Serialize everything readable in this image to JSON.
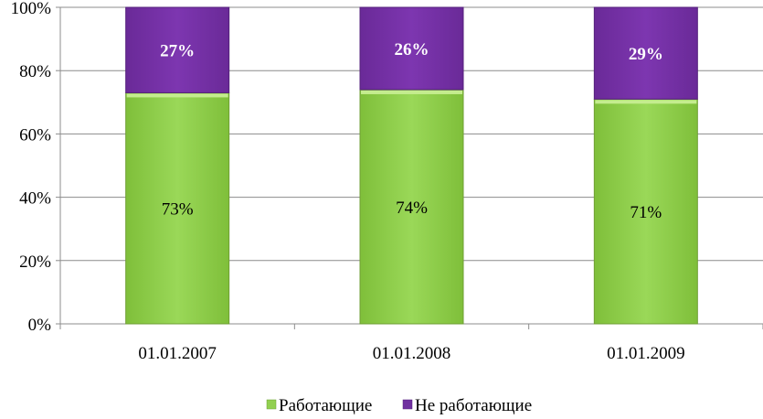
{
  "chart_data": {
    "type": "bar",
    "stacked": true,
    "categories": [
      "01.01.2007",
      "01.01.2008",
      "01.01.2009"
    ],
    "series": [
      {
        "name": "Работающие",
        "values": [
          73,
          74,
          71
        ],
        "color": "#92d050",
        "labels": [
          "73%",
          "74%",
          "71%"
        ]
      },
      {
        "name": "Не работающие",
        "values": [
          27,
          26,
          29
        ],
        "color": "#7030a0",
        "labels": [
          "27%",
          "26%",
          "29%"
        ]
      }
    ],
    "title": "",
    "xlabel": "",
    "ylabel": "",
    "ylim": [
      0,
      100
    ],
    "yticks": [
      "0%",
      "20%",
      "40%",
      "60%",
      "80%",
      "100%"
    ],
    "grid": true,
    "legend": "bottom"
  }
}
